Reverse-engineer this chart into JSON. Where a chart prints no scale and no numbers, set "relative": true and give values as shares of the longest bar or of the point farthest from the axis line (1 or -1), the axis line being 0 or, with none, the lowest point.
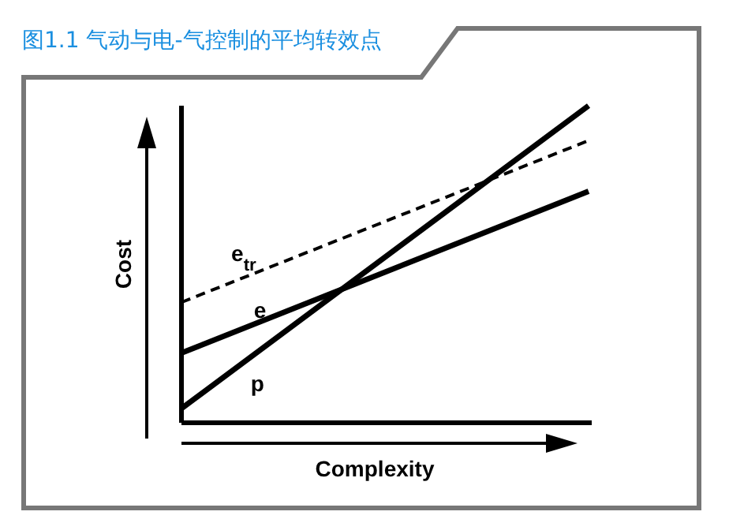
{
  "chart_data": {
    "type": "line",
    "title": "图1.1 气动与电-气控制的平均转效点",
    "xlabel": "Complexity",
    "ylabel": "Cost",
    "relative": true,
    "categories": [
      null,
      null
    ],
    "series": [
      {
        "name": "e$_{tr}$",
        "color": "#000000",
        "values": [
          0.38,
          0.89
        ],
        "line_style": "dashed"
      },
      {
        "name": "e",
        "color": "#000000",
        "values": [
          0.22,
          0.73
        ],
        "line_style": "solid"
      },
      {
        "name": "p",
        "color": "#000000",
        "values": [
          0.045,
          1
        ],
        "line_style": "solid"
      }
    ]
  }
}
